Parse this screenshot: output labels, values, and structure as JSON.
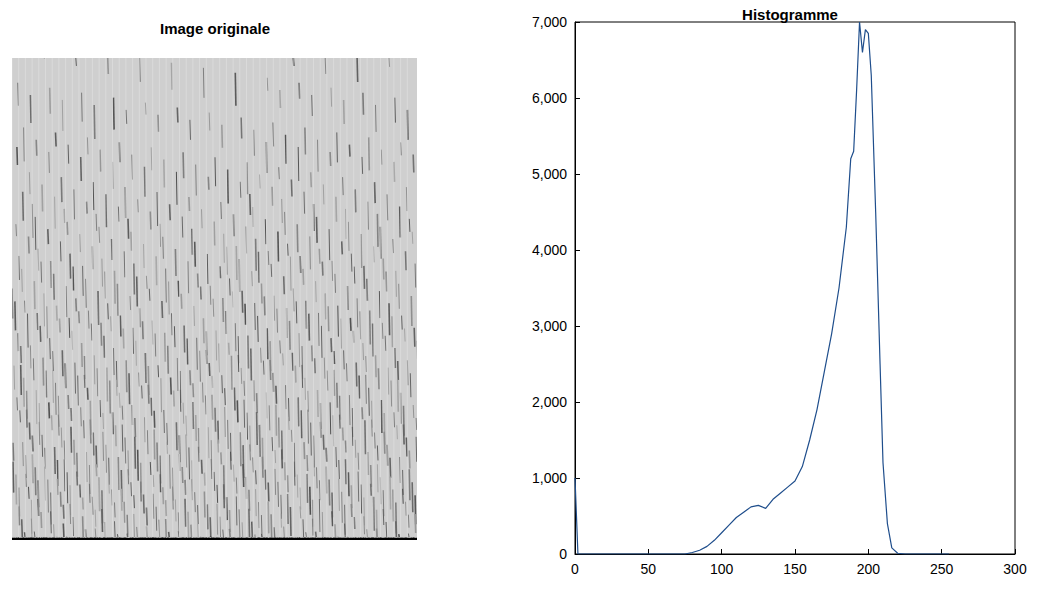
{
  "image_panel": {
    "title": "Image originale"
  },
  "chart_data": {
    "type": "line",
    "title": "Histogramme",
    "color": "#1f4e8c",
    "grid": false,
    "x": [
      0,
      2,
      5,
      10,
      20,
      30,
      40,
      50,
      60,
      70,
      75,
      80,
      85,
      90,
      95,
      100,
      105,
      110,
      115,
      120,
      125,
      130,
      135,
      140,
      145,
      150,
      155,
      160,
      165,
      170,
      175,
      180,
      185,
      188,
      190,
      192,
      194,
      196,
      198,
      200,
      202,
      205,
      208,
      210,
      213,
      216,
      220,
      225,
      240,
      255
    ],
    "values": [
      1000,
      0,
      0,
      0,
      0,
      0,
      0,
      0,
      0,
      0,
      0,
      20,
      50,
      100,
      180,
      280,
      380,
      480,
      550,
      620,
      640,
      600,
      720,
      800,
      880,
      960,
      1150,
      1500,
      1900,
      2400,
      2900,
      3500,
      4300,
      5200,
      5300,
      6100,
      7000,
      6600,
      6900,
      6850,
      6300,
      4500,
      2500,
      1200,
      400,
      80,
      10,
      0,
      0,
      0
    ],
    "xlim": [
      0,
      300
    ],
    "xticks": [
      0,
      50,
      100,
      150,
      200,
      250,
      300
    ],
    "ylim": [
      0,
      7000
    ],
    "yticks": [
      0,
      1000,
      2000,
      3000,
      4000,
      5000,
      6000,
      7000
    ]
  }
}
